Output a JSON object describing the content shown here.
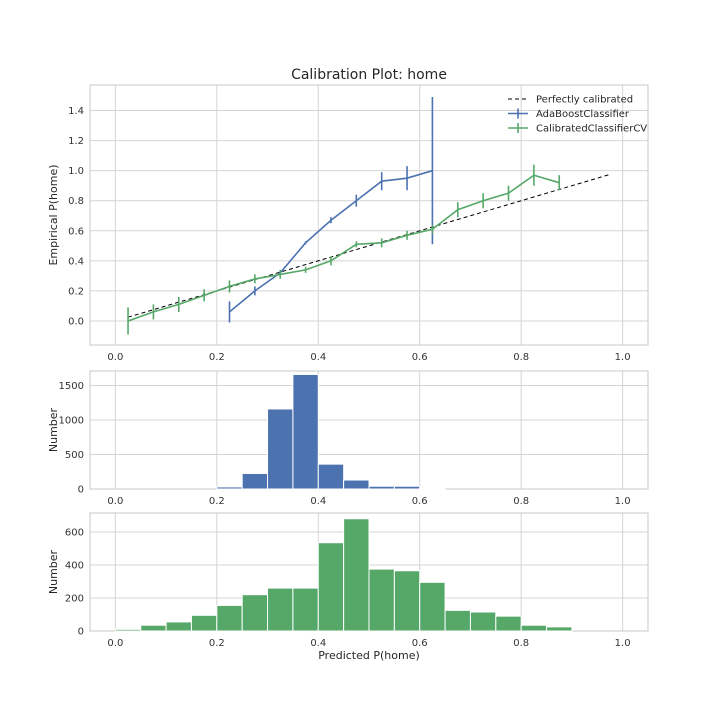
{
  "chart_data": [
    {
      "type": "line",
      "title": "Calibration Plot: home",
      "xlabel": "",
      "ylabel": "Empirical P(home)",
      "xlim": [
        -0.05,
        1.05
      ],
      "ylim": [
        -0.16,
        1.57
      ],
      "xticks": [
        0.0,
        0.2,
        0.4,
        0.6,
        0.8,
        1.0
      ],
      "xtick_labels": [
        "0.0",
        "0.2",
        "0.4",
        "0.6",
        "0.8",
        "1.0"
      ],
      "yticks": [
        0.0,
        0.2,
        0.4,
        0.6,
        0.8,
        1.0,
        1.2,
        1.4
      ],
      "ytick_labels": [
        "0.0",
        "0.2",
        "0.4",
        "0.6",
        "0.8",
        "1.0",
        "1.2",
        "1.4"
      ],
      "grid": true,
      "legend_position": "top-right",
      "series": [
        {
          "name": "Perfectly calibrated",
          "style": "dashed",
          "color": "#000000",
          "x": [
            0.025,
            0.975
          ],
          "y": [
            0.025,
            0.975
          ]
        },
        {
          "name": "AdaBoostClassifier",
          "style": "errorbar",
          "color": "#4c72b0",
          "x": [
            0.225,
            0.275,
            0.325,
            0.375,
            0.425,
            0.475,
            0.525,
            0.575,
            0.625
          ],
          "y": [
            0.06,
            0.2,
            0.32,
            0.52,
            0.67,
            0.8,
            0.93,
            0.95,
            1.0
          ],
          "yerr": [
            0.07,
            0.03,
            0.01,
            0.01,
            0.02,
            0.04,
            0.06,
            0.08,
            0.49
          ]
        },
        {
          "name": "CalibratedClassifierCV",
          "style": "errorbar",
          "color": "#55a868",
          "x": [
            0.025,
            0.075,
            0.125,
            0.175,
            0.225,
            0.275,
            0.325,
            0.375,
            0.425,
            0.475,
            0.525,
            0.575,
            0.625,
            0.675,
            0.725,
            0.775,
            0.825,
            0.875
          ],
          "y": [
            0.0,
            0.06,
            0.11,
            0.17,
            0.23,
            0.28,
            0.31,
            0.34,
            0.4,
            0.51,
            0.52,
            0.57,
            0.61,
            0.74,
            0.8,
            0.85,
            0.97,
            0.92
          ],
          "yerr": [
            0.09,
            0.05,
            0.05,
            0.04,
            0.04,
            0.03,
            0.03,
            0.02,
            0.03,
            0.02,
            0.03,
            0.03,
            0.03,
            0.05,
            0.05,
            0.05,
            0.07,
            0.05
          ]
        }
      ]
    },
    {
      "type": "bar",
      "title": "",
      "xlabel": "",
      "ylabel": "Number",
      "xlim": [
        -0.05,
        1.05
      ],
      "ylim": [
        0,
        1710
      ],
      "xticks": [
        0.0,
        0.2,
        0.4,
        0.6,
        0.8,
        1.0
      ],
      "xtick_labels": [
        "0.0",
        "0.2",
        "0.4",
        "0.6",
        "0.8",
        "1.0"
      ],
      "yticks": [
        0,
        500,
        1000,
        1500
      ],
      "ytick_labels": [
        "0",
        "500",
        "1000",
        "1500"
      ],
      "grid": true,
      "bin_width": 0.05,
      "series": [
        {
          "name": "",
          "color": "#4c72b0",
          "bin_starts": [
            0.2,
            0.25,
            0.3,
            0.35,
            0.4,
            0.45,
            0.5,
            0.55,
            0.6
          ],
          "values": [
            30,
            225,
            1160,
            1660,
            360,
            130,
            40,
            40,
            10
          ]
        }
      ]
    },
    {
      "type": "bar",
      "title": "",
      "xlabel": "Predicted P(home)",
      "ylabel": "Number",
      "xlim": [
        -0.05,
        1.05
      ],
      "ylim": [
        0,
        715
      ],
      "xticks": [
        0.0,
        0.2,
        0.4,
        0.6,
        0.8,
        1.0
      ],
      "xtick_labels": [
        "0.0",
        "0.2",
        "0.4",
        "0.6",
        "0.8",
        "1.0"
      ],
      "yticks": [
        0,
        200,
        400,
        600
      ],
      "ytick_labels": [
        "0",
        "200",
        "400",
        "600"
      ],
      "grid": true,
      "bin_width": 0.05,
      "series": [
        {
          "name": "",
          "color": "#55a868",
          "bin_starts": [
            0.0,
            0.05,
            0.1,
            0.15,
            0.2,
            0.25,
            0.3,
            0.35,
            0.4,
            0.45,
            0.5,
            0.55,
            0.6,
            0.65,
            0.7,
            0.75,
            0.8,
            0.85
          ],
          "values": [
            10,
            35,
            55,
            95,
            155,
            220,
            260,
            260,
            535,
            680,
            375,
            365,
            295,
            125,
            115,
            90,
            35,
            25
          ]
        }
      ]
    }
  ]
}
